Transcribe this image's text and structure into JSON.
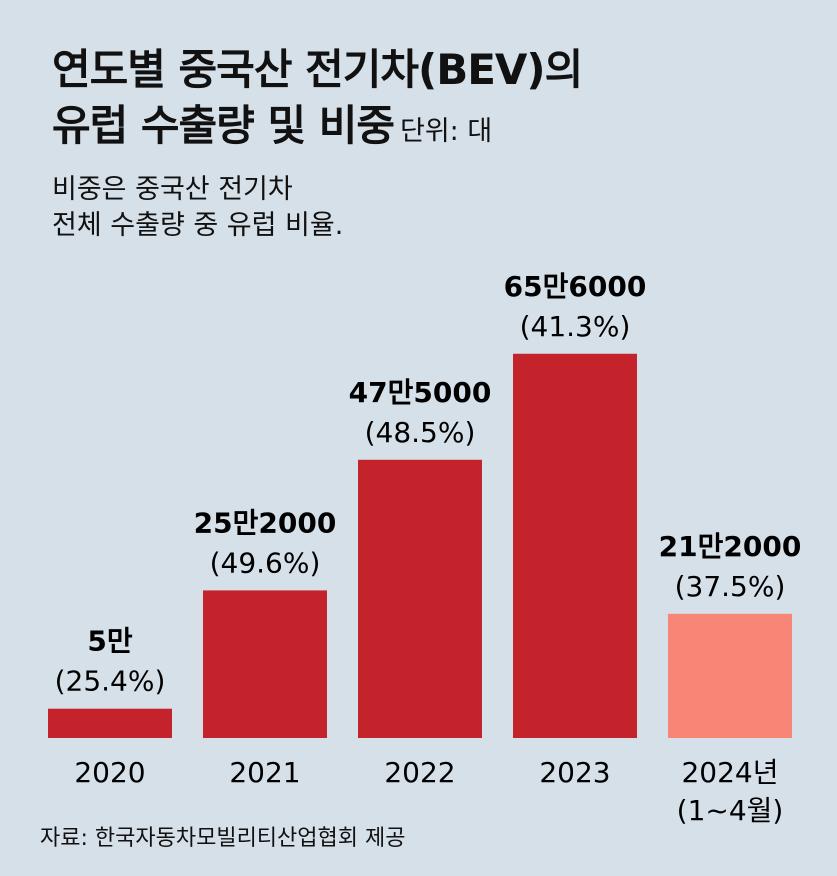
{
  "chart_data": {
    "type": "bar",
    "title_line1": "연도별 중국산 전기차(BEV)의",
    "title_line2": "유럽 수출량 및 비중",
    "unit_label": "단위: 대",
    "subtitle_line1": "비중은 중국산 전기차",
    "subtitle_line2": "전체 수출량 중 유럽 비율.",
    "categories": [
      "2020",
      "2021",
      "2022",
      "2023",
      "2024년"
    ],
    "category_notes": [
      "",
      "",
      "",
      "",
      "(1~4월)"
    ],
    "values": [
      50000,
      252000,
      475000,
      656000,
      212000
    ],
    "value_labels": [
      "5만",
      "25만2000",
      "47만5000",
      "65만6000",
      "21만2000"
    ],
    "share_labels": [
      "(25.4%)",
      "(49.6%)",
      "(48.5%)",
      "(41.3%)",
      "(37.5%)"
    ],
    "ylim": [
      0,
      700000
    ],
    "colors": [
      "#c4232b",
      "#c4232b",
      "#c4232b",
      "#c4232b",
      "#f78677"
    ],
    "source": "자료: 한국자동차모빌리티산업협회 제공"
  }
}
